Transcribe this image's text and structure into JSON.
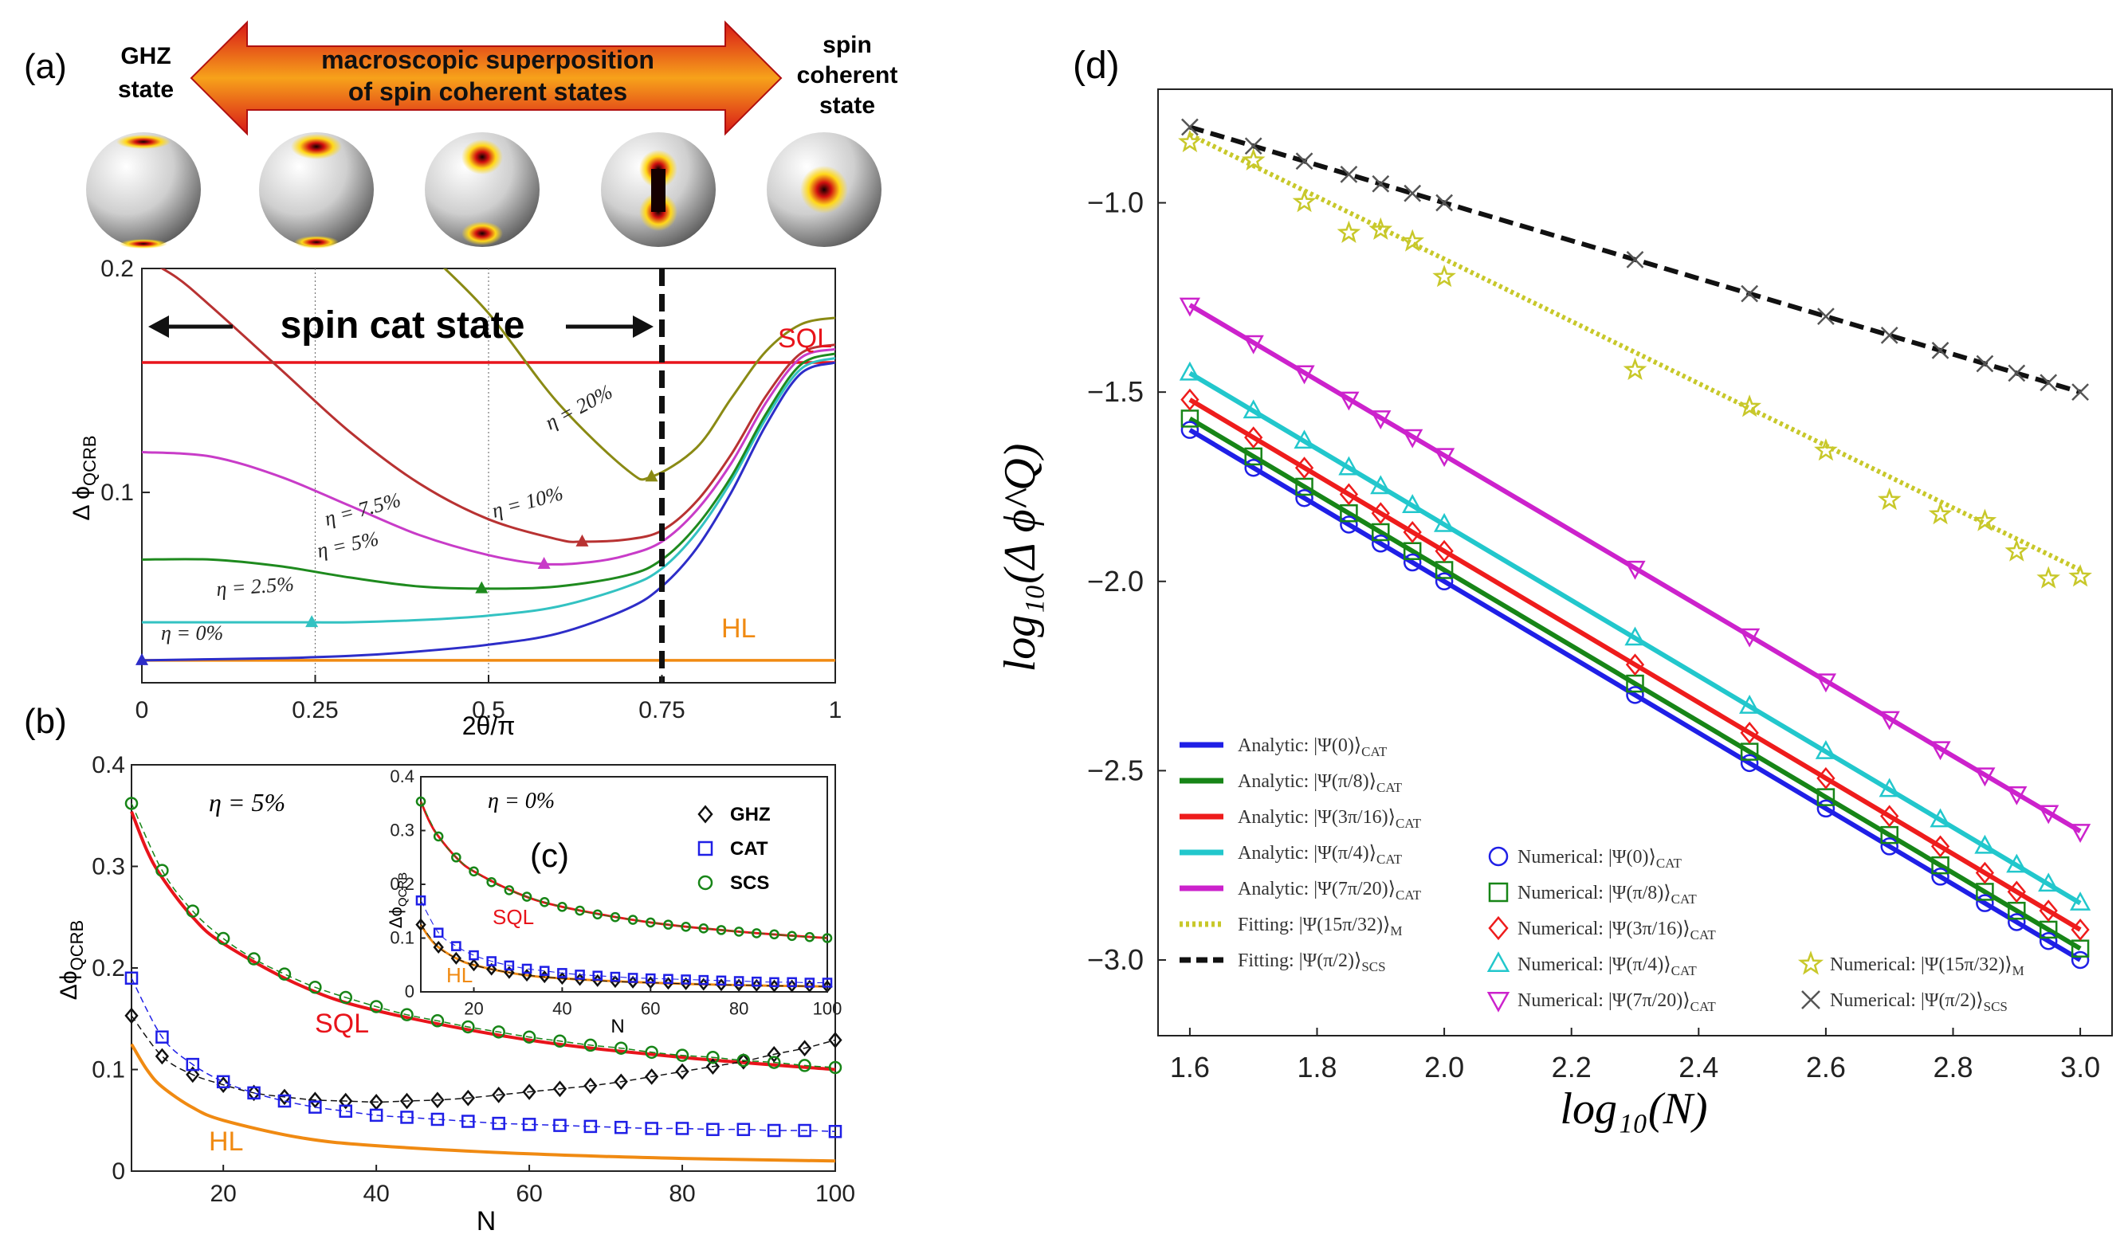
{
  "panels": {
    "a": {
      "label": "(a)",
      "left_caption": [
        "GHZ",
        "state"
      ],
      "right_caption": [
        "spin",
        "coherent",
        "state"
      ],
      "arrow_text": [
        "macroscopic superposition",
        "of spin coherent states"
      ]
    },
    "b": {
      "label": "(b)"
    },
    "c": {
      "label": "(c)"
    },
    "d": {
      "label": "(d)"
    }
  },
  "colors": {
    "sql": "#e8141b",
    "hl": "#f08a12",
    "eta0": "#2d2dc8",
    "eta25": "#33c2c2",
    "eta5": "#1e8a1e",
    "eta75": "#c83cc8",
    "eta10": "#b83232",
    "eta20": "#8a8a14",
    "blue": "#1f1fe6",
    "green": "#178517",
    "red": "#ee1c1c",
    "cyan": "#22c7cc",
    "magenta": "#cc22cc",
    "olive": "#c8c82a",
    "black": "#111111",
    "gray": "#555555"
  },
  "chart_data": [
    {
      "id": "a",
      "type": "line",
      "xlabel": "2θ/π",
      "ylabel": "Δ ϕ",
      "ylabel_sub": "QCRB",
      "xlim": [
        0,
        1
      ],
      "ylim": [
        0.015,
        0.2
      ],
      "xticks": [
        0,
        0.25,
        0.5,
        0.75,
        1
      ],
      "xtick_labels": [
        "0",
        "0.25",
        "0.5",
        "0.75",
        "1"
      ],
      "yticks": [
        0.1,
        0.2
      ],
      "ytick_labels": [
        "0.1",
        "0.2"
      ],
      "dotted_verticals": [
        0.25,
        0.5
      ],
      "dashed_vertical": 0.75,
      "span_label": "spin cat state",
      "sql": {
        "label": "SQL",
        "y": 0.158
      },
      "hl": {
        "label": "HL",
        "y": 0.025
      },
      "series": [
        {
          "name": "η = 0%",
          "color_key": "eta0",
          "marker_x": 0.0,
          "x": [
            0,
            0.1,
            0.2,
            0.3,
            0.4,
            0.5,
            0.6,
            0.7,
            0.75,
            0.8,
            0.85,
            0.9,
            0.95,
            1.0
          ],
          "y": [
            0.025,
            0.0255,
            0.026,
            0.027,
            0.029,
            0.032,
            0.037,
            0.048,
            0.058,
            0.075,
            0.1,
            0.13,
            0.153,
            0.158
          ]
        },
        {
          "name": "η = 2.5%",
          "color_key": "eta25",
          "marker_x": 0.245,
          "x": [
            0,
            0.1,
            0.2,
            0.25,
            0.3,
            0.4,
            0.5,
            0.6,
            0.7,
            0.75,
            0.8,
            0.85,
            0.9,
            0.95,
            1.0
          ],
          "y": [
            0.042,
            0.042,
            0.042,
            0.042,
            0.042,
            0.043,
            0.045,
            0.049,
            0.058,
            0.066,
            0.082,
            0.105,
            0.133,
            0.155,
            0.16
          ]
        },
        {
          "name": "η = 5%",
          "color_key": "eta5",
          "marker_x": 0.49,
          "x": [
            0,
            0.1,
            0.2,
            0.3,
            0.4,
            0.5,
            0.6,
            0.7,
            0.75,
            0.8,
            0.85,
            0.9,
            0.95,
            1.0
          ],
          "y": [
            0.07,
            0.07,
            0.067,
            0.062,
            0.058,
            0.057,
            0.058,
            0.063,
            0.07,
            0.085,
            0.107,
            0.135,
            0.157,
            0.162
          ]
        },
        {
          "name": "η = 7.5%",
          "color_key": "eta75",
          "marker_x": 0.58,
          "x": [
            0,
            0.1,
            0.2,
            0.3,
            0.4,
            0.5,
            0.58,
            0.65,
            0.7,
            0.75,
            0.8,
            0.85,
            0.9,
            0.95,
            1.0
          ],
          "y": [
            0.118,
            0.116,
            0.107,
            0.094,
            0.081,
            0.072,
            0.068,
            0.069,
            0.072,
            0.078,
            0.092,
            0.113,
            0.14,
            0.16,
            0.164
          ]
        },
        {
          "name": "η = 10%",
          "color_key": "eta10",
          "marker_x": 0.635,
          "x": [
            0,
            0.05,
            0.1,
            0.2,
            0.3,
            0.4,
            0.5,
            0.6,
            0.635,
            0.7,
            0.75,
            0.8,
            0.85,
            0.9,
            0.95,
            1.0
          ],
          "y": [
            0.205,
            0.196,
            0.183,
            0.155,
            0.127,
            0.104,
            0.088,
            0.079,
            0.078,
            0.079,
            0.083,
            0.096,
            0.117,
            0.143,
            0.162,
            0.166
          ]
        },
        {
          "name": "η = 20%",
          "color_key": "eta20",
          "marker_x": 0.735,
          "x": [
            0.42,
            0.5,
            0.6,
            0.7,
            0.735,
            0.8,
            0.85,
            0.9,
            0.95,
            1.0
          ],
          "y": [
            0.205,
            0.18,
            0.14,
            0.11,
            0.107,
            0.12,
            0.142,
            0.163,
            0.175,
            0.178
          ]
        }
      ],
      "annotations": [
        "η = 0%",
        "η = 2.5%",
        "η = 5%",
        "η = 7.5%",
        "η = 10%",
        "η = 20%"
      ]
    },
    {
      "id": "b",
      "type": "line",
      "title": "η = 5%",
      "xlabel": "N",
      "ylabel": "Δϕ",
      "ylabel_sub": "QCRB",
      "xlim": [
        8,
        100
      ],
      "ylim": [
        0,
        0.4
      ],
      "xticks": [
        20,
        40,
        60,
        80,
        100
      ],
      "yticks": [
        0,
        0.1,
        0.2,
        0.3,
        0.4
      ],
      "sql_label": "SQL",
      "hl_label": "HL",
      "sql": {
        "x": [
          8,
          10,
          12,
          16,
          20,
          30,
          40,
          60,
          80,
          100
        ],
        "y": [
          0.354,
          0.316,
          0.289,
          0.25,
          0.224,
          0.183,
          0.158,
          0.129,
          0.112,
          0.1
        ]
      },
      "hl": {
        "x": [
          8,
          10,
          12,
          16,
          20,
          30,
          40,
          60,
          80,
          100
        ],
        "y": [
          0.125,
          0.1,
          0.083,
          0.0625,
          0.05,
          0.033,
          0.025,
          0.017,
          0.0125,
          0.01
        ]
      },
      "series": [
        {
          "name": "GHZ",
          "marker": "diamond",
          "color_key": "black",
          "x": [
            8,
            12,
            16,
            20,
            24,
            28,
            32,
            36,
            40,
            44,
            48,
            52,
            56,
            60,
            64,
            68,
            72,
            76,
            80,
            84,
            88,
            92,
            96,
            100
          ],
          "y": [
            0.153,
            0.113,
            0.095,
            0.085,
            0.077,
            0.073,
            0.07,
            0.069,
            0.068,
            0.069,
            0.07,
            0.072,
            0.075,
            0.078,
            0.081,
            0.084,
            0.088,
            0.093,
            0.098,
            0.103,
            0.108,
            0.115,
            0.121,
            0.129
          ]
        },
        {
          "name": "CAT",
          "marker": "square",
          "color_key": "blue",
          "x": [
            8,
            12,
            16,
            20,
            24,
            28,
            32,
            36,
            40,
            44,
            48,
            52,
            56,
            60,
            64,
            68,
            72,
            76,
            80,
            84,
            88,
            92,
            96,
            100
          ],
          "y": [
            0.19,
            0.132,
            0.105,
            0.088,
            0.077,
            0.069,
            0.063,
            0.059,
            0.055,
            0.053,
            0.051,
            0.049,
            0.047,
            0.046,
            0.045,
            0.044,
            0.043,
            0.042,
            0.042,
            0.041,
            0.041,
            0.04,
            0.04,
            0.039
          ]
        },
        {
          "name": "SCS",
          "marker": "circle",
          "color_key": "green",
          "x": [
            8,
            12,
            16,
            20,
            24,
            28,
            32,
            36,
            40,
            44,
            48,
            52,
            56,
            60,
            64,
            68,
            72,
            76,
            80,
            84,
            88,
            92,
            96,
            100
          ],
          "y": [
            0.362,
            0.296,
            0.256,
            0.229,
            0.209,
            0.194,
            0.181,
            0.171,
            0.162,
            0.154,
            0.148,
            0.142,
            0.137,
            0.132,
            0.128,
            0.124,
            0.121,
            0.117,
            0.114,
            0.112,
            0.109,
            0.107,
            0.104,
            0.102
          ]
        }
      ]
    },
    {
      "id": "c",
      "type": "line",
      "title": "η = 0%",
      "xlabel": "N",
      "ylabel": "Δϕ",
      "ylabel_sub": "QCRB",
      "xlim": [
        8,
        100
      ],
      "ylim": [
        0,
        0.4
      ],
      "xticks": [
        20,
        40,
        60,
        80,
        100
      ],
      "yticks": [
        0,
        0.1,
        0.2,
        0.3,
        0.4
      ],
      "sql_label": "SQL",
      "hl_label": "HL",
      "legend": [
        "GHZ",
        "CAT",
        "SCS"
      ],
      "sql": {
        "x": [
          8,
          10,
          12,
          16,
          20,
          30,
          40,
          60,
          80,
          100
        ],
        "y": [
          0.354,
          0.316,
          0.289,
          0.25,
          0.224,
          0.183,
          0.158,
          0.129,
          0.112,
          0.1
        ]
      },
      "hl": {
        "x": [
          8,
          10,
          12,
          16,
          20,
          30,
          40,
          60,
          80,
          100
        ],
        "y": [
          0.125,
          0.1,
          0.083,
          0.0625,
          0.05,
          0.033,
          0.025,
          0.017,
          0.0125,
          0.01
        ]
      },
      "series": [
        {
          "name": "GHZ",
          "marker": "diamond",
          "color_key": "black",
          "x": [
            8,
            12,
            16,
            20,
            24,
            28,
            32,
            36,
            40,
            44,
            48,
            52,
            56,
            60,
            64,
            68,
            72,
            76,
            80,
            84,
            88,
            92,
            96,
            100
          ],
          "y": [
            0.125,
            0.083,
            0.0625,
            0.05,
            0.042,
            0.036,
            0.031,
            0.028,
            0.025,
            0.023,
            0.021,
            0.019,
            0.018,
            0.017,
            0.016,
            0.015,
            0.014,
            0.013,
            0.0125,
            0.012,
            0.011,
            0.011,
            0.0105,
            0.01
          ]
        },
        {
          "name": "CAT",
          "marker": "square",
          "color_key": "blue",
          "x": [
            8,
            12,
            16,
            20,
            24,
            28,
            32,
            36,
            40,
            44,
            48,
            52,
            56,
            60,
            64,
            68,
            72,
            76,
            80,
            84,
            88,
            92,
            96,
            100
          ],
          "y": [
            0.17,
            0.11,
            0.085,
            0.068,
            0.057,
            0.049,
            0.043,
            0.039,
            0.035,
            0.032,
            0.03,
            0.028,
            0.026,
            0.025,
            0.024,
            0.023,
            0.022,
            0.021,
            0.02,
            0.019,
            0.018,
            0.018,
            0.017,
            0.017
          ]
        },
        {
          "name": "SCS",
          "marker": "circle",
          "color_key": "green",
          "x": [
            8,
            12,
            16,
            20,
            24,
            28,
            32,
            36,
            40,
            44,
            48,
            52,
            56,
            60,
            64,
            68,
            72,
            76,
            80,
            84,
            88,
            92,
            96,
            100
          ],
          "y": [
            0.354,
            0.289,
            0.25,
            0.224,
            0.204,
            0.189,
            0.177,
            0.167,
            0.158,
            0.151,
            0.144,
            0.139,
            0.134,
            0.129,
            0.125,
            0.121,
            0.118,
            0.115,
            0.112,
            0.109,
            0.107,
            0.104,
            0.102,
            0.1
          ]
        }
      ]
    },
    {
      "id": "d",
      "type": "line",
      "xlabel": "log₁₀(N)",
      "ylabel": "log₁₀(Δ ϕ^Q)",
      "xlim": [
        1.55,
        3.05
      ],
      "ylim": [
        -3.2,
        -0.7
      ],
      "xticks": [
        1.6,
        1.8,
        2.0,
        2.2,
        2.4,
        2.6,
        2.8,
        3.0
      ],
      "xtick_labels": [
        "1.6",
        "1.8",
        "2.0",
        "2.2",
        "2.4",
        "2.6",
        "2.8",
        "3.0"
      ],
      "yticks": [
        -3.0,
        -2.5,
        -2.0,
        -1.5,
        -1.0
      ],
      "ytick_labels": [
        "−3.0",
        "−2.5",
        "−2.0",
        "−1.5",
        "−1.0"
      ],
      "marker_x": [
        1.6,
        1.7,
        1.78,
        1.85,
        1.9,
        1.95,
        2.0,
        2.3,
        2.48,
        2.6,
        2.7,
        2.78,
        2.85,
        2.9,
        2.95,
        3.0
      ],
      "series": [
        {
          "name": "Analytic: |Ψ(0)⟩",
          "sub": "CAT",
          "style": "solid",
          "color_key": "blue",
          "x": [
            1.6,
            3.0
          ],
          "y": [
            -1.6,
            -3.0
          ]
        },
        {
          "name": "Analytic: |Ψ(π/8)⟩",
          "sub": "CAT",
          "style": "solid",
          "color_key": "green",
          "x": [
            1.6,
            3.0
          ],
          "y": [
            -1.57,
            -2.97
          ]
        },
        {
          "name": "Analytic: |Ψ(3π/16)⟩",
          "sub": "CAT",
          "style": "solid",
          "color_key": "red",
          "x": [
            1.6,
            3.0
          ],
          "y": [
            -1.52,
            -2.92
          ]
        },
        {
          "name": "Analytic: |Ψ(π/4)⟩",
          "sub": "CAT",
          "style": "solid",
          "color_key": "cyan",
          "x": [
            1.6,
            3.0
          ],
          "y": [
            -1.45,
            -2.85
          ]
        },
        {
          "name": "Analytic: |Ψ(7π/20)⟩",
          "sub": "CAT",
          "style": "solid",
          "color_key": "magenta",
          "x": [
            1.6,
            3.0
          ],
          "y": [
            -1.27,
            -2.66
          ]
        },
        {
          "name": "Fitting: |Ψ(15π/32)⟩",
          "sub": "M",
          "style": "dotted",
          "color_key": "olive",
          "x": [
            1.6,
            3.0
          ],
          "y": [
            -0.82,
            -1.97
          ]
        },
        {
          "name": "Fitting: |Ψ(π/2)⟩",
          "sub": "SCS",
          "style": "dashed",
          "color_key": "black",
          "x": [
            1.6,
            3.0
          ],
          "y": [
            -0.8,
            -1.5
          ]
        },
        {
          "name": "Numerical: |Ψ(0)⟩",
          "sub": "CAT",
          "marker": "circle",
          "color_key": "blue",
          "x": [
            1.6,
            3.0
          ],
          "y": [
            -1.6,
            -3.0
          ]
        },
        {
          "name": "Numerical: |Ψ(π/8)⟩",
          "sub": "CAT",
          "marker": "square",
          "color_key": "green",
          "x": [
            1.6,
            3.0
          ],
          "y": [
            -1.57,
            -2.97
          ]
        },
        {
          "name": "Numerical: |Ψ(3π/16)⟩",
          "sub": "CAT",
          "marker": "diamond",
          "color_key": "red",
          "x": [
            1.6,
            3.0
          ],
          "y": [
            -1.52,
            -2.92
          ]
        },
        {
          "name": "Numerical: |Ψ(π/4)⟩",
          "sub": "CAT",
          "marker": "triangle-up",
          "color_key": "cyan",
          "x": [
            1.6,
            3.0
          ],
          "y": [
            -1.45,
            -2.85
          ]
        },
        {
          "name": "Numerical: |Ψ(7π/20)⟩",
          "sub": "CAT",
          "marker": "triangle-down",
          "color_key": "magenta",
          "x": [
            1.6,
            3.0
          ],
          "y": [
            -1.27,
            -2.66
          ]
        },
        {
          "name": "Numerical: |Ψ(15π/32)⟩",
          "sub": "M",
          "marker": "star",
          "color_key": "olive",
          "x": [
            1.6,
            3.0
          ],
          "y": [
            -0.84,
            -2.0
          ]
        },
        {
          "name": "Numerical: |Ψ(π/2)⟩",
          "sub": "SCS",
          "marker": "x",
          "color_key": "gray",
          "x": [
            1.6,
            3.0
          ],
          "y": [
            -0.8,
            -1.5
          ]
        }
      ]
    }
  ]
}
